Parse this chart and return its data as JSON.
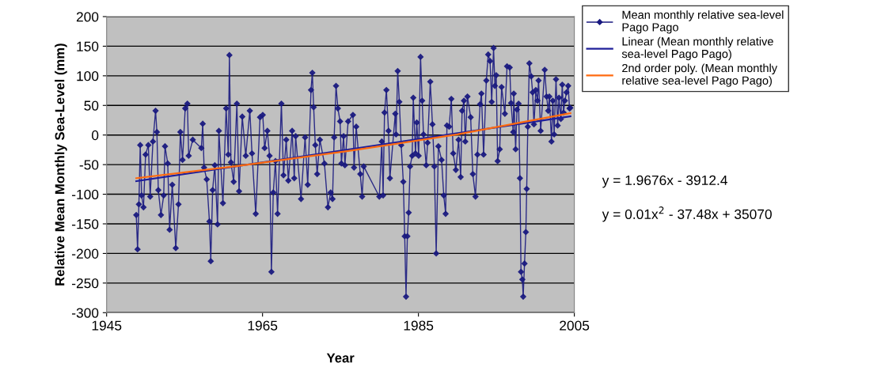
{
  "chart_data": {
    "type": "line",
    "xlabel": "Year",
    "ylabel": "Relative Mean Monthly Sea-Level (mm)",
    "xlim": [
      1945,
      2005
    ],
    "xticks": [
      1945,
      1965,
      1985,
      2005
    ],
    "ylim": [
      -300,
      200
    ],
    "yticks": [
      -300,
      -250,
      -200,
      -150,
      -100,
      -50,
      0,
      50,
      100,
      150,
      200
    ],
    "grid": "y",
    "legend": "right",
    "annotations": [
      "y = 1.9676x - 3912.4",
      "y = 0.01x$^{2}$ - 37.48x + 35070"
    ],
    "series": [
      {
        "name": "Mean monthly relative sea-level Pago Pago",
        "color": "#1a1a80",
        "marker": "diamond",
        "line_style": "solid",
        "x": [
          1948.8,
          1948.97,
          1949.14,
          1949.31,
          1949.49,
          1949.73,
          1950.0,
          1950.35,
          1950.59,
          1950.94,
          1951.28,
          1951.45,
          1951.63,
          1951.97,
          1952.32,
          1952.49,
          1952.84,
          1953.08,
          1953.42,
          1953.87,
          1954.22,
          1954.46,
          1954.74,
          1955.08,
          1955.36,
          1955.53,
          1956.05,
          1957.15,
          1957.33,
          1957.5,
          1957.84,
          1958.19,
          1958.36,
          1958.6,
          1958.88,
          1959.23,
          1959.4,
          1959.92,
          1960.33,
          1960.61,
          1960.75,
          1960.95,
          1961.3,
          1961.71,
          1961.99,
          1962.4,
          1962.85,
          1963.37,
          1963.65,
          1964.13,
          1964.68,
          1965.03,
          1965.27,
          1965.62,
          1965.9,
          1966.14,
          1966.38,
          1966.66,
          1966.93,
          1967.42,
          1967.69,
          1968.04,
          1968.31,
          1968.8,
          1969.07,
          1969.25,
          1969.94,
          1970.46,
          1970.8,
          1971.22,
          1971.39,
          1971.56,
          1971.77,
          1972.01,
          1972.36,
          1972.94,
          1973.39,
          1973.74,
          1973.98,
          1974.19,
          1974.43,
          1974.67,
          1974.95,
          1975.12,
          1975.4,
          1975.57,
          1975.98,
          1976.6,
          1976.74,
          1977.02,
          1977.54,
          1977.78,
          1977.98,
          1979.98,
          1980.3,
          1980.47,
          1980.65,
          1980.89,
          1981.16,
          1981.34,
          1982.03,
          1982.13,
          1982.34,
          1982.55,
          1982.79,
          1983.06,
          1983.24,
          1983.41,
          1983.58,
          1983.75,
          1983.93,
          1984.2,
          1984.34,
          1984.62,
          1984.79,
          1985.03,
          1985.27,
          1985.48,
          1985.65,
          1986.0,
          1986.18,
          1986.52,
          1986.8,
          1987.04,
          1987.28,
          1987.56,
          1987.97,
          1988.25,
          1988.49,
          1988.66,
          1988.94,
          1989.22,
          1989.46,
          1989.8,
          1990.15,
          1990.42,
          1990.6,
          1990.84,
          1991.01,
          1991.29,
          1991.7,
          1991.98,
          1992.32,
          1992.57,
          1992.91,
          1993.08,
          1993.36,
          1993.71,
          1993.95,
          1994.19,
          1994.4,
          1994.64,
          1994.81,
          1994.98,
          1995.16,
          1995.43,
          1995.67,
          1996.09,
          1996.37,
          1996.71,
          1996.88,
          1997.16,
          1997.23,
          1997.47,
          1997.64,
          1997.85,
          1998.02,
          1998.16,
          1998.33,
          1998.44,
          1998.61,
          1998.78,
          1998.89,
          1999.03,
          1999.23,
          1999.47,
          1999.65,
          1999.82,
          2000.06,
          2000.27,
          2000.41,
          2000.68,
          2001.2,
          2001.44,
          2001.65,
          2001.79,
          2002.07,
          2002.24,
          2002.41,
          2002.65,
          2002.86,
          2003.03,
          2003.27,
          2003.45,
          2003.62,
          2003.79,
          2003.99,
          2004.21,
          2004.38,
          2004.48
        ],
        "values": [
          -135,
          -193,
          -117,
          -17,
          -102,
          -122,
          -33,
          -17,
          -104,
          -11,
          41,
          5,
          -93,
          -135,
          -102,
          -19,
          -48,
          -160,
          -84,
          -191,
          -117,
          5,
          -42,
          45,
          53,
          -35,
          -8,
          -22,
          19,
          -55,
          -75,
          -146,
          -213,
          -93,
          -51,
          -151,
          7,
          -115,
          45,
          -33,
          135,
          -46,
          -79,
          53,
          -95,
          31,
          -35,
          41,
          -31,
          -133,
          30,
          34,
          -22,
          7,
          -35,
          -231,
          -97,
          -44,
          -133,
          53,
          -68,
          -8,
          -77,
          7,
          -73,
          -2,
          -108,
          -4,
          -84,
          76,
          105,
          47,
          -17,
          -66,
          -8,
          -48,
          -122,
          -97,
          -108,
          -4,
          83,
          45,
          23,
          -48,
          -2,
          -51,
          23,
          34,
          -55,
          14,
          -66,
          -104,
          -53,
          -104,
          -11,
          -102,
          38,
          76,
          7,
          -73,
          36,
          1,
          108,
          56,
          -17,
          -79,
          -171,
          -273,
          -171,
          -131,
          -53,
          -35,
          63,
          -31,
          21,
          -35,
          132,
          58,
          1,
          -51,
          -13,
          90,
          18,
          -53,
          -200,
          -19,
          -42,
          -102,
          -133,
          16,
          14,
          61,
          -31,
          -59,
          -8,
          -71,
          41,
          58,
          -11,
          65,
          30,
          -66,
          -104,
          -33,
          52,
          70,
          -33,
          92,
          136,
          125,
          56,
          147,
          83,
          101,
          -44,
          -24,
          81,
          36,
          116,
          114,
          54,
          5,
          70,
          -24,
          43,
          53,
          -73,
          -231,
          -244,
          -273,
          -217,
          -164,
          -91,
          14,
          121,
          99,
          72,
          18,
          76,
          58,
          92,
          7,
          110,
          65,
          41,
          65,
          -11,
          58,
          1,
          94,
          16,
          63,
          27,
          85,
          38,
          58,
          72,
          83,
          45,
          46
        ]
      },
      {
        "name": "Linear (Mean monthly relative sea-level Pago Pago)",
        "color": "#1f1f9a",
        "line_style": "solid",
        "x": [
          1948.8,
          2004.5
        ],
        "values": [
          -78,
          31.6
        ]
      },
      {
        "name": "2nd order poly. (Mean monthly relative sea-level Pago Pago)",
        "color": "#ff6a10",
        "line_style": "solid",
        "x": [
          1948.8,
          1962,
          1976,
          1990,
          2004.5
        ],
        "values": [
          -73,
          -52,
          -27,
          1,
          37
        ]
      }
    ]
  }
}
